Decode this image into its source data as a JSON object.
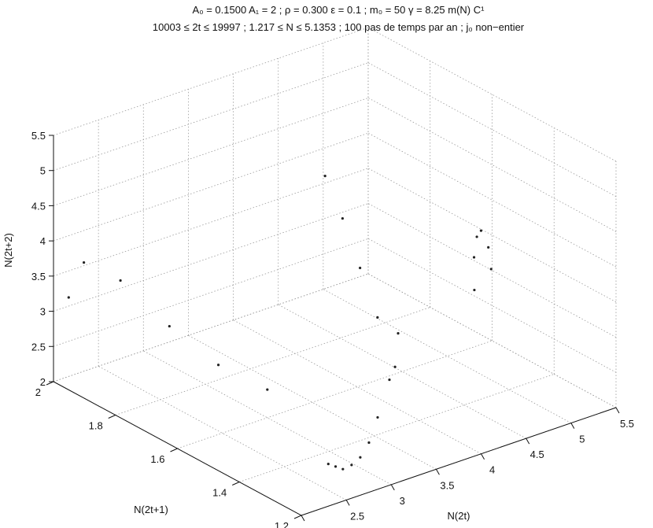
{
  "chart_data": {
    "type": "scatter",
    "projection": "3d",
    "grid": true,
    "title_lines": [
      "A₀ = 0.1500 A₁ = 2 ; ρ = 0.300 ε = 0.1 ; m₀ = 50 γ = 8.25 m(N) C¹",
      "10003 ≤ 2t ≤ 19997 ; 1.217 ≤ N ≤ 5.1353 ; 100 pas de temps par an ; j₀ non−entier"
    ],
    "xlabel": "N(2t)",
    "ylabel": "N(2t+1)",
    "zlabel": "N(2t+2)",
    "xlim": [
      2,
      5.5
    ],
    "ylim": [
      1.2,
      2
    ],
    "zlim": [
      2,
      5.5
    ],
    "xticks": [
      "2",
      "2.5",
      "3",
      "3.5",
      "4",
      "4.5",
      "5",
      "5.5"
    ],
    "yticks": [
      "1.2",
      "1.4",
      "1.6",
      "1.8",
      "2"
    ],
    "zticks": [
      "2",
      "2.5",
      "3",
      "3.5",
      "4",
      "4.5",
      "5",
      "5.5"
    ],
    "point_color": "#222222",
    "series": [
      {
        "x": [
          2.3,
          2.45,
          2.6,
          2.8,
          3.0,
          3.2,
          3.4,
          3.6,
          3.8
        ],
        "y": [
          1.2,
          1.22,
          1.24,
          1.27,
          1.3,
          1.33,
          1.36,
          1.38,
          1.41
        ],
        "z": [
          2.6,
          2.45,
          2.3,
          2.2,
          2.15,
          2.2,
          2.4,
          2.8,
          3.3
        ]
      },
      {
        "x": [
          4.8,
          4.7,
          4.55,
          4.4,
          4.3,
          4.2
        ],
        "y": [
          1.4,
          1.38,
          1.36,
          1.33,
          1.31,
          1.28
        ],
        "z": [
          3.8,
          4.2,
          4.55,
          4.6,
          4.4,
          4.05
        ]
      },
      {
        "x": [
          3.8,
          3.95,
          4.1,
          4.25,
          4.4
        ],
        "y": [
          1.42,
          1.52,
          1.62,
          1.72,
          1.82
        ],
        "z": [
          2.8,
          3.2,
          3.6,
          4.0,
          4.3
        ]
      },
      {
        "x": [
          2.1,
          2.2,
          2.4,
          2.6,
          2.8,
          3.0
        ],
        "y": [
          1.98,
          1.96,
          1.9,
          1.8,
          1.7,
          1.6
        ],
        "z": [
          3.2,
          3.7,
          3.5,
          3.0,
          2.6,
          2.4
        ]
      }
    ]
  }
}
